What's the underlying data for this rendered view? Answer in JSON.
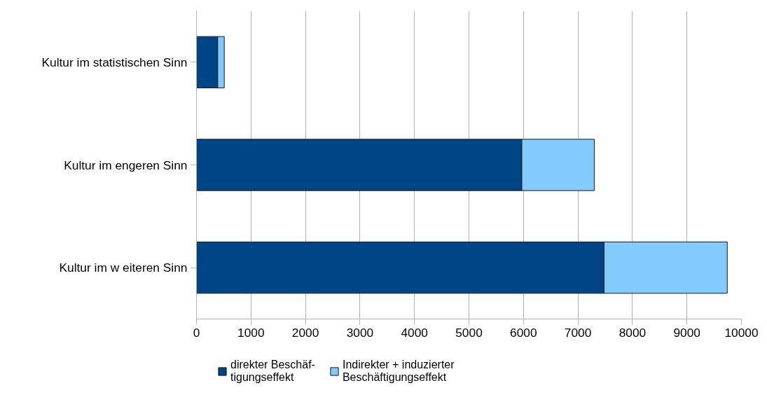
{
  "chart_data": {
    "type": "bar",
    "orientation": "horizontal",
    "stacked": true,
    "categories": [
      "Kultur im statistischen Sinn",
      "Kultur im engeren Sinn",
      "Kultur im w eiteren Sinn"
    ],
    "series": [
      {
        "name": "direkter Beschäf-\ntigungseffekt",
        "color": "#004586",
        "values": [
          390,
          5970,
          7480
        ]
      },
      {
        "name": "Indirekter + induzierter\nBeschäftigungseffekt",
        "color": "#83caff",
        "values": [
          120,
          1330,
          2260
        ]
      }
    ],
    "xlim": [
      0,
      10000
    ],
    "xticks": [
      0,
      1000,
      2000,
      3000,
      4000,
      5000,
      6000,
      7000,
      8000,
      9000,
      10000
    ],
    "grid": "x",
    "legend": "bottom"
  }
}
